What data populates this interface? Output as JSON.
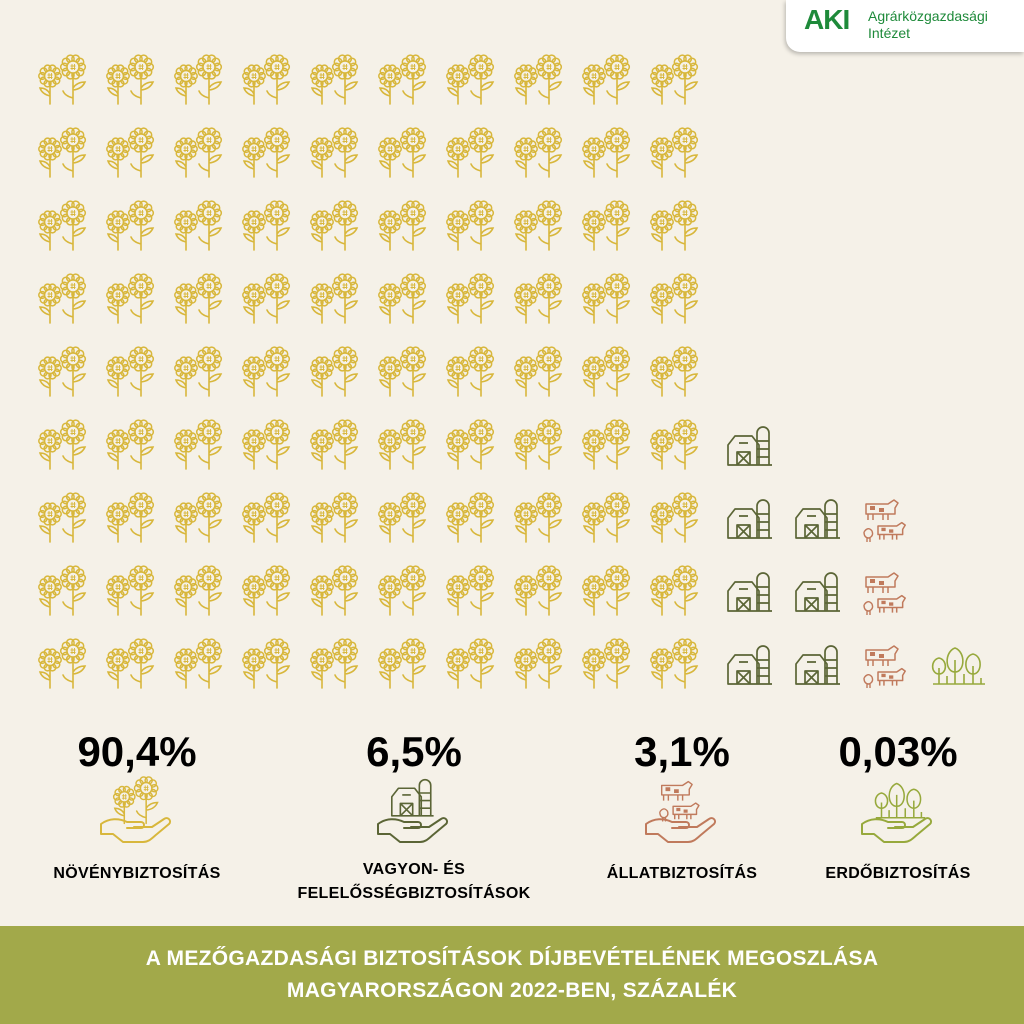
{
  "logo": {
    "mark": "AKI",
    "name_line1": "Agrárközgazdasági",
    "name_line2": "Intézet"
  },
  "chart_data": {
    "type": "pictogram",
    "title_line1": "A MEZŐGAZDASÁGI BIZTOSÍTÁSOK DÍJBEVÉTELÉNEK MEGOSZLÁSA",
    "title_line2": "MAGYARORSZÁGON 2022-BEN, SZÁZALÉK",
    "categories": [
      {
        "label": "NÖVÉNYBIZTOSÍTÁS",
        "value_text": "90,4%",
        "value": 90.4,
        "icons": 90,
        "color": "#d8b73c",
        "icon": "sunflower-icon"
      },
      {
        "label": "VAGYON- ÉS FELELŐSSÉGBIZTOSÍTÁSOK",
        "label_line1": "VAGYON- ÉS",
        "label_line2": "FELELŐSSÉGBIZTOSÍTÁSOK",
        "value_text": "6,5%",
        "value": 6.5,
        "icons": 7,
        "color": "#5b6536",
        "icon": "barn-icon"
      },
      {
        "label": "ÁLLATBIZTOSÍTÁS",
        "value_text": "3,1%",
        "value": 3.1,
        "icons": 3,
        "color": "#c07a5c",
        "icon": "livestock-icon"
      },
      {
        "label": "ERDŐBIZTOSÍTÁS",
        "value_text": "0,03%",
        "value": 0.03,
        "icons": 1,
        "color": "#97a93c",
        "icon": "forest-icon"
      }
    ]
  }
}
